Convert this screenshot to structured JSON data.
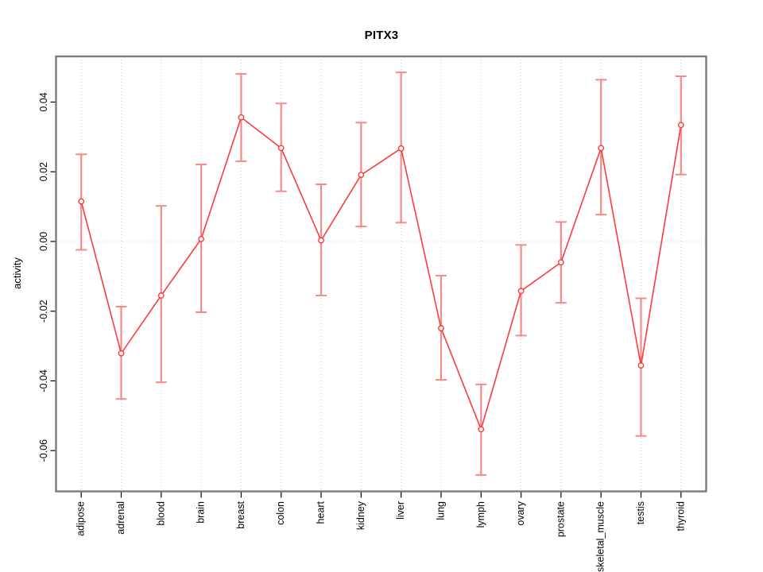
{
  "chart_data": {
    "type": "line",
    "title": "PITX3",
    "xlabel": "",
    "ylabel": "activity",
    "categories": [
      "adipose",
      "adrenal",
      "blood",
      "brain",
      "breast",
      "colon",
      "heart",
      "kidney",
      "liver",
      "lung",
      "lymph",
      "ovary",
      "prostate",
      "skeletal_muscle",
      "testis",
      "thyroid"
    ],
    "series": [
      {
        "name": "activity",
        "values": [
          0.0115,
          -0.0321,
          -0.0155,
          0.0007,
          0.0356,
          0.0268,
          0.0003,
          0.0191,
          0.0267,
          -0.0249,
          -0.0539,
          -0.0142,
          -0.006,
          0.0268,
          -0.0356,
          0.0334
        ],
        "error_low": [
          -0.0024,
          -0.0452,
          -0.0404,
          -0.0203,
          0.023,
          0.0144,
          -0.0155,
          0.0043,
          0.0054,
          -0.0397,
          -0.067,
          -0.027,
          -0.0176,
          0.0077,
          -0.0558,
          0.0192
        ],
        "error_high": [
          0.025,
          -0.0187,
          0.0102,
          0.0221,
          0.0481,
          0.0396,
          0.0164,
          0.0341,
          0.0485,
          -0.0098,
          -0.041,
          -0.001,
          0.0056,
          0.0464,
          -0.0163,
          0.0474
        ]
      }
    ],
    "y_ticks": [
      {
        "value": 0.04,
        "label": "0.04"
      },
      {
        "value": 0.02,
        "label": "0.02"
      },
      {
        "value": 0.0,
        "label": "0.00"
      },
      {
        "value": -0.02,
        "label": "-0.02"
      },
      {
        "value": -0.04,
        "label": "-0.04"
      },
      {
        "value": -0.06,
        "label": "-0.06"
      }
    ],
    "ylim": [
      -0.0717,
      0.0531
    ],
    "grid_vertical": true,
    "grid_horizontal_values": [
      0
    ],
    "legend": "none",
    "marker": "open-circle",
    "colors": {
      "line": "#fa3b3b",
      "error_bar": "#f88989",
      "grid": "#c9c9c9",
      "box": "#7d7d7d",
      "tick": "#000000",
      "text": "#000000",
      "marker_fill": "#ffffff"
    }
  }
}
